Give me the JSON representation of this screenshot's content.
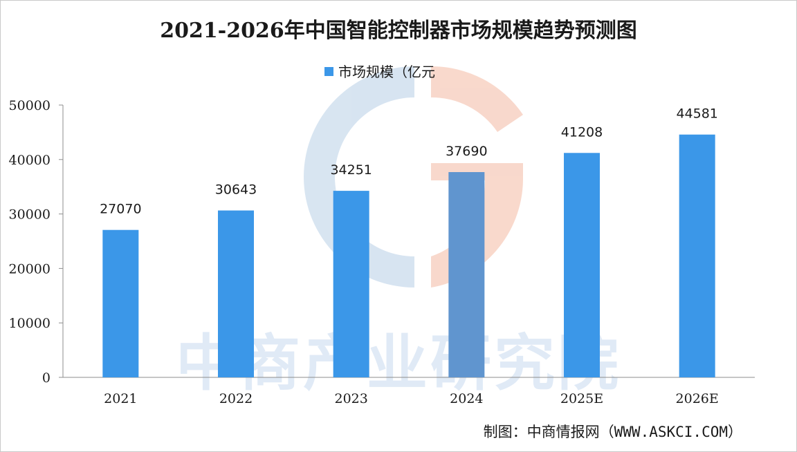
{
  "chart_data": {
    "type": "bar",
    "title": "2021-2026年中国智能控制器市场规模趋势预测图",
    "categories": [
      "2021",
      "2022",
      "2023",
      "2024",
      "2025E",
      "2026E"
    ],
    "series": [
      {
        "name": "市场规模（亿元",
        "values": [
          27070,
          30643,
          34251,
          37690,
          41208,
          44581
        ]
      }
    ],
    "ylim": [
      0,
      50000
    ],
    "yticks": [
      0,
      10000,
      20000,
      30000,
      40000,
      50000
    ],
    "xlabel": "",
    "ylabel": "",
    "legend_position": "top-center",
    "grid": false,
    "bar_color": "#3b97e8",
    "highlight_bar_color": "#6095cf"
  },
  "watermark": {
    "text": "中商产业研究院"
  },
  "source": "制图：中商情报网（WWW.ASKCI.COM）"
}
